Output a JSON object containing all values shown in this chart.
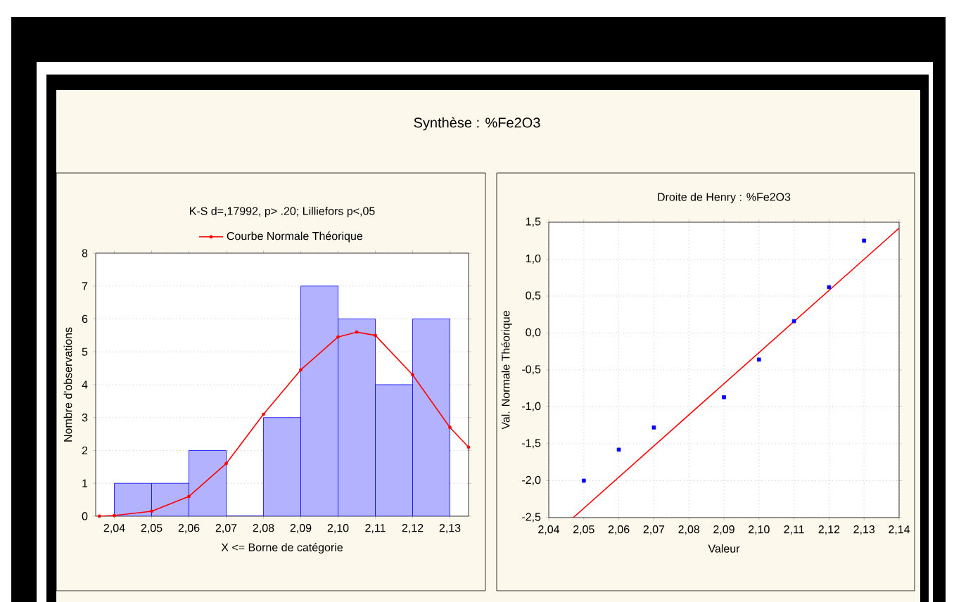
{
  "chart_data": [
    {
      "type": "histogram",
      "title": "Synthèse : %Fe2O3",
      "subtitle": "K-S d=,17992, p> .20; Lilliefors p<,05",
      "xlabel": "X <= Borne de catégorie",
      "ylabel": "Nombre d'observations",
      "bins": [
        2.04,
        2.05,
        2.06,
        2.07,
        2.08,
        2.09,
        2.1,
        2.11,
        2.12,
        2.13
      ],
      "values": [
        1,
        1,
        2,
        0,
        3,
        7,
        6,
        4,
        6
      ],
      "color": "#0000ff",
      "series": [
        {
          "type": "line",
          "name": "Courbe Normale Théorique",
          "color": "#ff0000",
          "marker": "circle",
          "x": [
            2.036,
            2.04,
            2.05,
            2.06,
            2.07,
            2.08,
            2.09,
            2.1,
            2.105,
            2.11,
            2.12,
            2.13,
            2.135
          ],
          "values": [
            0,
            0.02,
            0.15,
            0.6,
            1.6,
            3.1,
            4.45,
            5.45,
            5.6,
            5.5,
            4.3,
            2.7,
            2.1
          ]
        }
      ],
      "xlim": [
        2.035,
        2.135
      ],
      "xticks": [
        {
          "value": 2.04,
          "label": "2,04"
        },
        {
          "value": 2.05,
          "label": "2,05"
        },
        {
          "value": 2.06,
          "label": "2,06"
        },
        {
          "value": 2.07,
          "label": "2,07"
        },
        {
          "value": 2.08,
          "label": "2,08"
        },
        {
          "value": 2.09,
          "label": "2,09"
        },
        {
          "value": 2.1,
          "label": "2,10"
        },
        {
          "value": 2.11,
          "label": "2,11"
        },
        {
          "value": 2.12,
          "label": "2,12"
        },
        {
          "value": 2.13,
          "label": "2,13"
        }
      ],
      "ylim": [
        0,
        8
      ],
      "yticks": [
        0,
        1,
        2,
        3,
        4,
        5,
        6,
        7,
        8
      ],
      "grid": "y",
      "legend": "top"
    },
    {
      "type": "scatter",
      "title": "Droite de Henry : %Fe2O3",
      "xlabel": "Valeur",
      "ylabel": "Val. Normale Théorique",
      "series": [
        {
          "type": "scatter",
          "color": "#0000ff",
          "marker": "square",
          "x": [
            2.05,
            2.06,
            2.07,
            2.09,
            2.1,
            2.11,
            2.12,
            2.13
          ],
          "values": [
            -2.0,
            -1.58,
            -1.28,
            -0.87,
            -0.36,
            0.16,
            0.62,
            1.25
          ]
        },
        {
          "type": "line",
          "color": "#ff0000",
          "x": [
            2.047,
            2.14
          ],
          "values": [
            -2.5,
            1.42
          ]
        }
      ],
      "xlim": [
        2.04,
        2.14
      ],
      "xticks": [
        {
          "value": 2.04,
          "label": "2,04"
        },
        {
          "value": 2.05,
          "label": "2,05"
        },
        {
          "value": 2.06,
          "label": "2,06"
        },
        {
          "value": 2.07,
          "label": "2,07"
        },
        {
          "value": 2.08,
          "label": "2,08"
        },
        {
          "value": 2.09,
          "label": "2,09"
        },
        {
          "value": 2.1,
          "label": "2,10"
        },
        {
          "value": 2.11,
          "label": "2,11"
        },
        {
          "value": 2.12,
          "label": "2,12"
        },
        {
          "value": 2.13,
          "label": "2,13"
        },
        {
          "value": 2.14,
          "label": "2,14"
        }
      ],
      "ylim": [
        -2.5,
        1.5
      ],
      "yticks": [
        {
          "value": -2.5,
          "label": "-2,5"
        },
        {
          "value": -2.0,
          "label": "-2,0"
        },
        {
          "value": -1.5,
          "label": "-1,5"
        },
        {
          "value": -1.0,
          "label": "-1,0"
        },
        {
          "value": -0.5,
          "label": "-0,5"
        },
        {
          "value": 0.0,
          "label": "0,0"
        },
        {
          "value": 0.5,
          "label": "0,5"
        },
        {
          "value": 1.0,
          "label": "1,0"
        },
        {
          "value": 1.5,
          "label": "1,5"
        }
      ],
      "grid": true
    }
  ]
}
